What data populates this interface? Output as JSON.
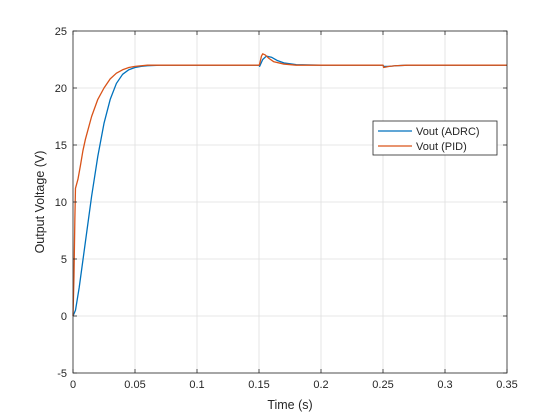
{
  "chart_data": {
    "type": "line",
    "title": "",
    "xlabel": "Time (s)",
    "ylabel": "Output Voltage (V)",
    "xlim": [
      0,
      0.35
    ],
    "ylim": [
      -5,
      25
    ],
    "xticks": [
      0,
      0.05,
      0.1,
      0.15,
      0.2,
      0.25,
      0.3,
      0.35
    ],
    "xtick_labels": [
      "0",
      "0.05",
      "0.1",
      "0.15",
      "0.2",
      "0.25",
      "0.3",
      "0.35"
    ],
    "yticks": [
      -5,
      0,
      5,
      10,
      15,
      20,
      25
    ],
    "ytick_labels": [
      "-5",
      "0",
      "5",
      "10",
      "15",
      "20",
      "25"
    ],
    "grid": true,
    "legend_position": "right",
    "series": [
      {
        "name": "Vout (ADRC)",
        "color": "#0072BD",
        "x": [
          0,
          0.002,
          0.005,
          0.01,
          0.015,
          0.02,
          0.025,
          0.03,
          0.035,
          0.04,
          0.045,
          0.05,
          0.055,
          0.06,
          0.07,
          0.08,
          0.1,
          0.15,
          0.1505,
          0.153,
          0.156,
          0.16,
          0.165,
          0.17,
          0.18,
          0.2,
          0.25,
          0.2505,
          0.255,
          0.26,
          0.27,
          0.3,
          0.35
        ],
        "y": [
          0,
          0.5,
          2.5,
          6.5,
          10.5,
          14.0,
          16.9,
          19.0,
          20.4,
          21.2,
          21.6,
          21.8,
          21.9,
          21.95,
          22.0,
          22.0,
          22.0,
          22.0,
          21.9,
          22.5,
          22.8,
          22.7,
          22.4,
          22.2,
          22.05,
          22.0,
          22.0,
          21.9,
          21.9,
          21.95,
          22.0,
          22.0,
          22.0
        ]
      },
      {
        "name": "Vout (PID)",
        "color": "#D95319",
        "x": [
          0,
          0.0008,
          0.0015,
          0.002,
          0.004,
          0.006,
          0.008,
          0.01,
          0.015,
          0.02,
          0.025,
          0.03,
          0.035,
          0.04,
          0.045,
          0.05,
          0.055,
          0.06,
          0.07,
          0.1,
          0.15,
          0.1505,
          0.152,
          0.153,
          0.155,
          0.158,
          0.162,
          0.17,
          0.18,
          0.2,
          0.25,
          0.2505,
          0.255,
          0.26,
          0.27,
          0.3,
          0.35
        ],
        "y": [
          0,
          3.5,
          8.5,
          11.2,
          12.0,
          13.2,
          14.5,
          15.5,
          17.5,
          19.0,
          20.0,
          20.8,
          21.3,
          21.6,
          21.8,
          21.9,
          21.95,
          22.0,
          22.0,
          22.0,
          22.0,
          22.1,
          22.8,
          23.0,
          22.9,
          22.6,
          22.3,
          22.1,
          22.0,
          22.0,
          22.0,
          21.8,
          21.9,
          21.95,
          22.0,
          22.0,
          22.0
        ]
      }
    ]
  }
}
